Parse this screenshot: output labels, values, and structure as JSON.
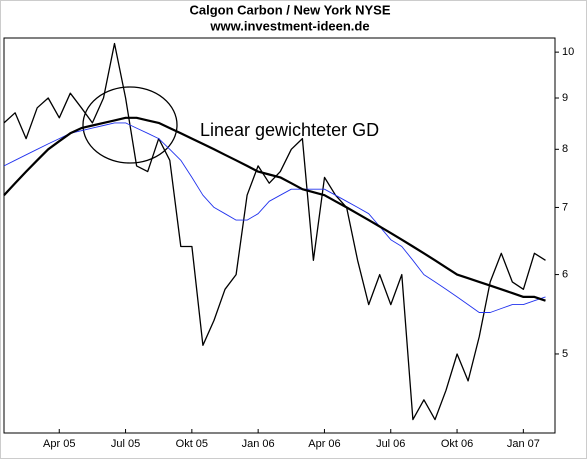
{
  "chart_data": {
    "type": "line",
    "title": "Calgon Carbon / New York NYSE",
    "subtitle": "www.investment-ideen.de",
    "annotation": "Linear gewichteter GD",
    "categories": [
      null,
      null,
      null,
      null,
      null,
      "Apr 05",
      null,
      null,
      null,
      null,
      null,
      "Jul 05",
      null,
      null,
      null,
      null,
      null,
      "Okt 05",
      null,
      null,
      null,
      null,
      null,
      "Jan 06",
      null,
      null,
      null,
      null,
      null,
      "Apr 06",
      null,
      null,
      null,
      null,
      null,
      "Jul 06",
      null,
      null,
      null,
      null,
      null,
      "Okt 06",
      null,
      null,
      null,
      null,
      null,
      "Jan 07",
      null,
      null
    ],
    "series": [
      {
        "color": "#000000",
        "width": 1.3,
        "values": [
          8.5,
          8.7,
          8.2,
          8.8,
          9.0,
          8.6,
          9.1,
          8.8,
          8.5,
          9.0,
          10.2,
          9.0,
          7.7,
          7.6,
          8.2,
          7.8,
          6.4,
          6.4,
          5.1,
          5.4,
          5.8,
          6.0,
          7.2,
          7.7,
          7.4,
          7.6,
          8.0,
          8.2,
          6.2,
          7.5,
          7.2,
          7.0,
          6.2,
          5.6,
          6.0,
          5.6,
          6.0,
          4.3,
          4.5,
          4.3,
          4.6,
          5.0,
          4.7,
          5.2,
          5.9,
          6.3,
          5.9,
          5.8,
          6.3,
          6.2
        ]
      },
      {
        "color": "#2233ee",
        "width": 0.9,
        "values": [
          7.7,
          7.8,
          7.9,
          8.0,
          8.1,
          8.2,
          8.3,
          8.35,
          8.4,
          8.45,
          8.5,
          8.5,
          8.4,
          8.3,
          8.2,
          8.0,
          7.8,
          7.5,
          7.2,
          7.0,
          6.9,
          6.8,
          6.8,
          6.9,
          7.1,
          7.2,
          7.3,
          7.3,
          7.3,
          7.3,
          7.2,
          7.1,
          7.0,
          6.9,
          6.7,
          6.5,
          6.4,
          6.2,
          6.0,
          5.9,
          5.8,
          5.7,
          5.6,
          5.5,
          5.5,
          5.55,
          5.6,
          5.6,
          5.65,
          5.7
        ]
      },
      {
        "color": "#000000",
        "width": 2.2,
        "values": [
          7.2,
          7.4,
          7.6,
          7.8,
          8.0,
          8.15,
          8.3,
          8.4,
          8.45,
          8.5,
          8.55,
          8.6,
          8.6,
          8.55,
          8.5,
          8.4,
          8.3,
          8.2,
          8.1,
          8.0,
          7.9,
          7.8,
          7.7,
          7.6,
          7.55,
          7.5,
          7.4,
          7.3,
          7.25,
          7.2,
          7.1,
          7.0,
          6.9,
          6.8,
          6.7,
          6.6,
          6.5,
          6.4,
          6.3,
          6.2,
          6.1,
          6.0,
          5.95,
          5.9,
          5.85,
          5.8,
          5.75,
          5.7,
          5.7,
          5.65
        ]
      }
    ],
    "ylog": true,
    "ylim": [
      4.17,
      10.33
    ],
    "yticks": [
      5,
      6,
      7,
      8,
      9,
      10
    ]
  }
}
